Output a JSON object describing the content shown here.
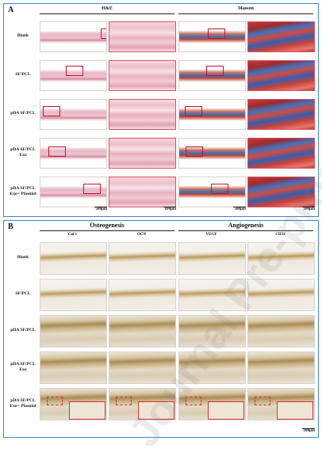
{
  "panel_a": {
    "label": "A",
    "groups": [
      "H&E",
      "Masson"
    ],
    "rows": [
      [
        "Blank"
      ],
      [
        "SF/PCL"
      ],
      [
        "pDA SF/PCL"
      ],
      [
        "pDA SF/PCL",
        "Exo"
      ],
      [
        "pDA SF/PCL",
        "Exo+ Plasmid"
      ]
    ],
    "scale_bars": [
      "500μm",
      "100μm",
      "500μm",
      "100μm"
    ]
  },
  "panel_b": {
    "label": "B",
    "groups": [
      "Osteogenesis",
      "Angiogenesis"
    ],
    "columns": [
      "Col 1",
      "OCN",
      "VEGF",
      "CD31"
    ],
    "rows": [
      [
        "Blank"
      ],
      [
        "SF/PCL"
      ],
      [
        "pDA SF/PCL"
      ],
      [
        "pDA SF/PCL",
        "Exo"
      ],
      [
        "pDA SF/PCL",
        "Exo+ Plasmid"
      ]
    ],
    "scale_bar": "100μm"
  },
  "watermark": "Journal Pre-proof",
  "colors": {
    "panel_border": "#3f86c8",
    "roi_box": "#c8102e",
    "he_stain": "#e7b8c3",
    "masson_collagen": "#3c6fb8",
    "masson_muscle": "#b8443a",
    "ihc_stain": "#b99a63"
  }
}
